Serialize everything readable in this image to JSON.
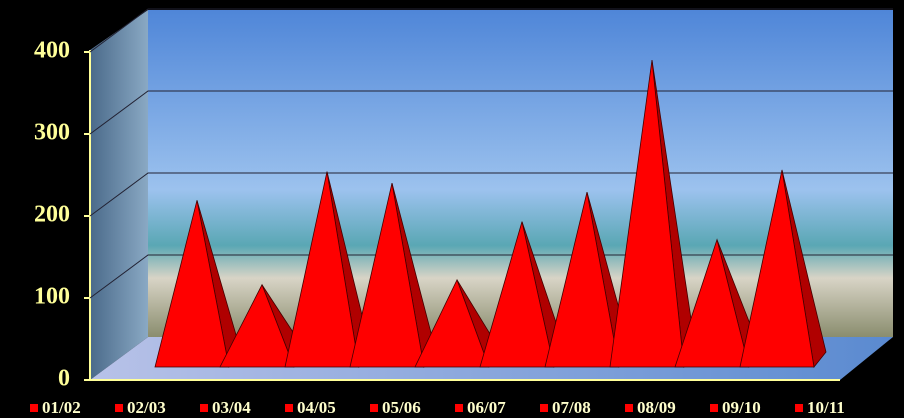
{
  "chart_data": {
    "type": "pyramid",
    "categories": [
      "01/02",
      "02/03",
      "03/04",
      "04/05",
      "05/06",
      "06/07",
      "07/08",
      "08/09",
      "09/10",
      "10/11"
    ],
    "values": [
      185,
      82,
      220,
      206,
      88,
      159,
      195,
      356,
      137,
      222
    ],
    "color": "#ff0000",
    "ylim": [
      0,
      400
    ],
    "yticks": [
      0,
      100,
      200,
      300,
      400
    ],
    "grid": true
  }
}
